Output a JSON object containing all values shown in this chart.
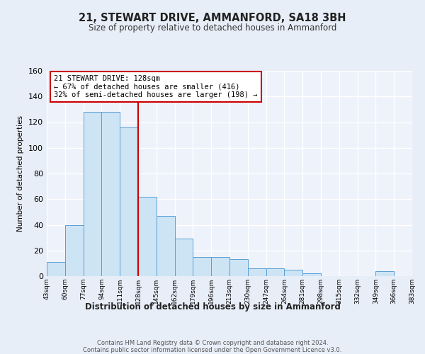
{
  "title": "21, STEWART DRIVE, AMMANFORD, SA18 3BH",
  "subtitle": "Size of property relative to detached houses in Ammanford",
  "xlabel": "Distribution of detached houses by size in Ammanford",
  "ylabel": "Number of detached properties",
  "bar_color": "#cde4f5",
  "bar_edge_color": "#5a9fd4",
  "background_color": "#e8eef8",
  "plot_bg_color": "#eef2fb",
  "grid_color": "#ffffff",
  "bins": [
    43,
    60,
    77,
    94,
    111,
    128,
    145,
    162,
    179,
    196,
    213,
    230,
    247,
    264,
    281,
    298,
    315,
    332,
    349,
    366,
    383
  ],
  "counts": [
    11,
    40,
    128,
    128,
    116,
    62,
    47,
    29,
    15,
    15,
    13,
    6,
    6,
    5,
    2,
    0,
    0,
    0,
    4,
    0
  ],
  "reference_line_x": 128,
  "reference_line_color": "#cc0000",
  "annotation_title": "21 STEWART DRIVE: 128sqm",
  "annotation_line1": "← 67% of detached houses are smaller (416)",
  "annotation_line2": "32% of semi-detached houses are larger (198) →",
  "annotation_box_color": "#ffffff",
  "annotation_box_edge_color": "#cc0000",
  "ylim": [
    0,
    160
  ],
  "yticks": [
    0,
    20,
    40,
    60,
    80,
    100,
    120,
    140,
    160
  ],
  "tick_labels": [
    "43sqm",
    "60sqm",
    "77sqm",
    "94sqm",
    "111sqm",
    "128sqm",
    "145sqm",
    "162sqm",
    "179sqm",
    "196sqm",
    "213sqm",
    "230sqm",
    "247sqm",
    "264sqm",
    "281sqm",
    "298sqm",
    "315sqm",
    "332sqm",
    "349sqm",
    "366sqm",
    "383sqm"
  ],
  "footer_line1": "Contains HM Land Registry data © Crown copyright and database right 2024.",
  "footer_line2": "Contains public sector information licensed under the Open Government Licence v3.0."
}
